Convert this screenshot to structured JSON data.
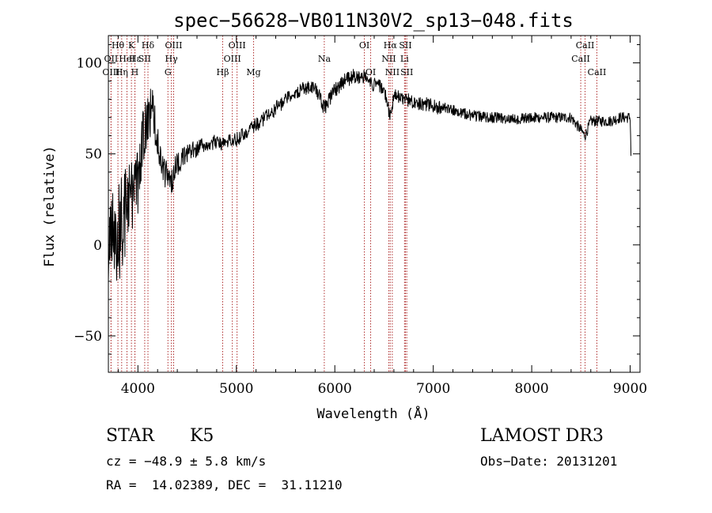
{
  "chart_data": {
    "type": "line",
    "title": "spec−56628−VB011N30V2_sp13−048.fits",
    "xlabel": "Wavelength (Å)",
    "ylabel": "Flux (relative)",
    "xlim": [
      3700,
      9100
    ],
    "ylim": [
      -70,
      115
    ],
    "xticks": [
      4000,
      5000,
      6000,
      7000,
      8000,
      9000
    ],
    "yticks": [
      -50,
      0,
      50,
      100
    ],
    "ytick_labels": [
      "−50",
      "0",
      "50",
      "100"
    ],
    "grid": false,
    "spectrum_trend": {
      "x": [
        3700,
        3750,
        3800,
        3850,
        3900,
        3950,
        4000,
        4050,
        4100,
        4150,
        4200,
        4250,
        4300,
        4340,
        4400,
        4500,
        4600,
        4700,
        4800,
        4861,
        4900,
        5000,
        5100,
        5200,
        5300,
        5400,
        5500,
        5600,
        5700,
        5800,
        5893,
        6000,
        6100,
        6200,
        6300,
        6400,
        6500,
        6563,
        6600,
        6700,
        6800,
        7000,
        7200,
        7400,
        7600,
        7800,
        8000,
        8200,
        8400,
        8542,
        8600,
        8800,
        8900,
        9000,
        9010
      ],
      "y": [
        0,
        10,
        5,
        15,
        20,
        30,
        35,
        60,
        70,
        75,
        55,
        40,
        40,
        35,
        45,
        50,
        53,
        55,
        57,
        55,
        57,
        58,
        62,
        66,
        70,
        75,
        80,
        84,
        86,
        87,
        75,
        85,
        90,
        93,
        92,
        88,
        86,
        70,
        82,
        80,
        79,
        76,
        74,
        71,
        70,
        69,
        70,
        70,
        70,
        60,
        68,
        68,
        70,
        70,
        45
      ],
      "noise_amplitude": [
        25,
        25,
        28,
        26,
        24,
        22,
        18,
        16,
        14,
        12,
        10,
        9,
        8,
        8,
        7,
        5,
        5,
        4,
        4,
        4,
        4,
        4,
        4,
        4,
        4,
        4,
        4,
        4,
        4,
        4,
        4,
        4,
        4,
        4,
        4,
        4,
        4,
        4,
        4,
        4,
        4,
        4,
        3,
        3,
        3,
        3,
        3,
        3,
        3,
        3,
        3,
        3,
        3,
        3,
        3
      ]
    },
    "line_markers": [
      {
        "label": "Hθ",
        "x": 3797,
        "row": 0
      },
      {
        "label": "OII",
        "x": 3727,
        "row": 1
      },
      {
        "label": "OIII",
        "x": 3727,
        "row": 2
      },
      {
        "label": "K",
        "x": 3934,
        "row": 0
      },
      {
        "label": "HeI",
        "x": 3889,
        "row": 1
      },
      {
        "label": "Hη",
        "x": 3835,
        "row": 2
      },
      {
        "label": "Hε",
        "x": 3970,
        "row": 1
      },
      {
        "label": "H",
        "x": 3969,
        "row": 2
      },
      {
        "label": "SII",
        "x": 4069,
        "row": 1
      },
      {
        "label": "Hδ",
        "x": 4102,
        "row": 0
      },
      {
        "label": "OIII",
        "x": 4363,
        "row": 0
      },
      {
        "label": "Hγ",
        "x": 4340,
        "row": 1
      },
      {
        "label": "G",
        "x": 4305,
        "row": 2
      },
      {
        "label": "OIII",
        "x": 5007,
        "row": 0
      },
      {
        "label": "OIII",
        "x": 4959,
        "row": 1
      },
      {
        "label": "Hβ",
        "x": 4861,
        "row": 2
      },
      {
        "label": "Mg",
        "x": 5175,
        "row": 2
      },
      {
        "label": "Na",
        "x": 5893,
        "row": 1
      },
      {
        "label": "OI",
        "x": 6300,
        "row": 0
      },
      {
        "label": "OI",
        "x": 6364,
        "row": 2
      },
      {
        "label": "Hα",
        "x": 6563,
        "row": 0
      },
      {
        "label": "SII",
        "x": 6717,
        "row": 0
      },
      {
        "label": "NII",
        "x": 6548,
        "row": 1
      },
      {
        "label": "Li",
        "x": 6708,
        "row": 1
      },
      {
        "label": "NII",
        "x": 6584,
        "row": 2
      },
      {
        "label": "SII",
        "x": 6731,
        "row": 2
      },
      {
        "label": "CaII",
        "x": 8542,
        "row": 0
      },
      {
        "label": "CaII",
        "x": 8498,
        "row": 1
      },
      {
        "label": "CaII",
        "x": 8662,
        "row": 2
      }
    ]
  },
  "footer": {
    "class_label": "STAR",
    "subclass_label": "K5",
    "survey_label": "LAMOST DR3",
    "redshift_text": "cz = −48.9 ± 5.8 km/s",
    "obs_date_text": "Obs−Date: 20131201",
    "coords_text": "RA =  14.02389, DEC =  31.11210"
  }
}
